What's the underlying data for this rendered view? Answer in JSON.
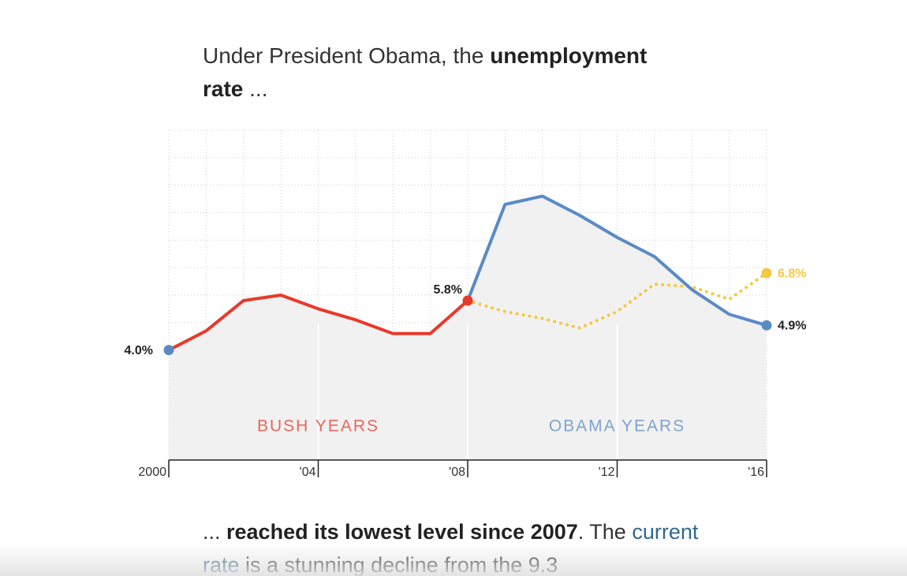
{
  "header": {
    "text": "Under President Obama, the ",
    "bold": "unemployment rate",
    "tail": " ..."
  },
  "chart_data": {
    "type": "line",
    "x": [
      2000,
      2001,
      2002,
      2003,
      2004,
      2005,
      2006,
      2007,
      2008,
      2009,
      2010,
      2011,
      2012,
      2013,
      2014,
      2015,
      2016
    ],
    "xlim": [
      2000,
      2016
    ],
    "ylim": [
      0,
      12
    ],
    "xticks": [
      2000,
      {
        "value": 2004,
        "label": "'04"
      },
      {
        "value": 2008,
        "label": "'08"
      },
      {
        "value": 2012,
        "label": "'12"
      },
      {
        "value": 2016,
        "label": "'16"
      }
    ],
    "grid": true,
    "series": [
      {
        "color": "#e8392b",
        "style": "solid",
        "area": true,
        "values": [
          4.0,
          4.7,
          5.8,
          6.0,
          5.5,
          5.1,
          4.6,
          4.6,
          5.8,
          null,
          null,
          null,
          null,
          null,
          null,
          null,
          null
        ],
        "value_labels": [
          "4.0%",
          null,
          null,
          null,
          null,
          null,
          null,
          null,
          "5.8%",
          null,
          null,
          null,
          null,
          null,
          null,
          null,
          null
        ],
        "markers": {
          "0": "#5a8ac6",
          "8": "#e8392b"
        }
      },
      {
        "color": "#5a8ac6",
        "style": "solid",
        "area": true,
        "values": [
          null,
          null,
          null,
          null,
          null,
          null,
          null,
          null,
          5.8,
          9.3,
          9.6,
          8.9,
          8.1,
          7.4,
          6.2,
          5.3,
          4.9
        ],
        "value_labels": [
          null,
          null,
          null,
          null,
          null,
          null,
          null,
          null,
          null,
          null,
          null,
          null,
          null,
          null,
          null,
          null,
          "4.9%"
        ],
        "markers": {
          "16": "#5a8ac6"
        }
      },
      {
        "color": "#f5c842",
        "style": "dotted",
        "area": false,
        "values": [
          null,
          null,
          null,
          null,
          null,
          null,
          null,
          null,
          5.8,
          5.4,
          5.15,
          4.8,
          5.4,
          6.4,
          6.3,
          5.85,
          6.8
        ],
        "value_labels": [
          null,
          null,
          null,
          null,
          null,
          null,
          null,
          null,
          null,
          null,
          null,
          null,
          null,
          null,
          null,
          null,
          "6.8%"
        ],
        "markers": {
          "16": "#f5c842"
        }
      }
    ],
    "annotations": [
      {
        "text": "BUSH YEARS",
        "x": 2004,
        "y": 1.2,
        "color": "#e8675d"
      },
      {
        "text": "OBAMA YEARS",
        "x": 2012,
        "y": 1.2,
        "color": "#7fa3d0"
      }
    ]
  },
  "body": {
    "lead": "... ",
    "bold": "reached its lowest level since 2007",
    "mid": ". The ",
    "link": "current rate",
    "tail": " is a stunning decline from the 9.3"
  }
}
